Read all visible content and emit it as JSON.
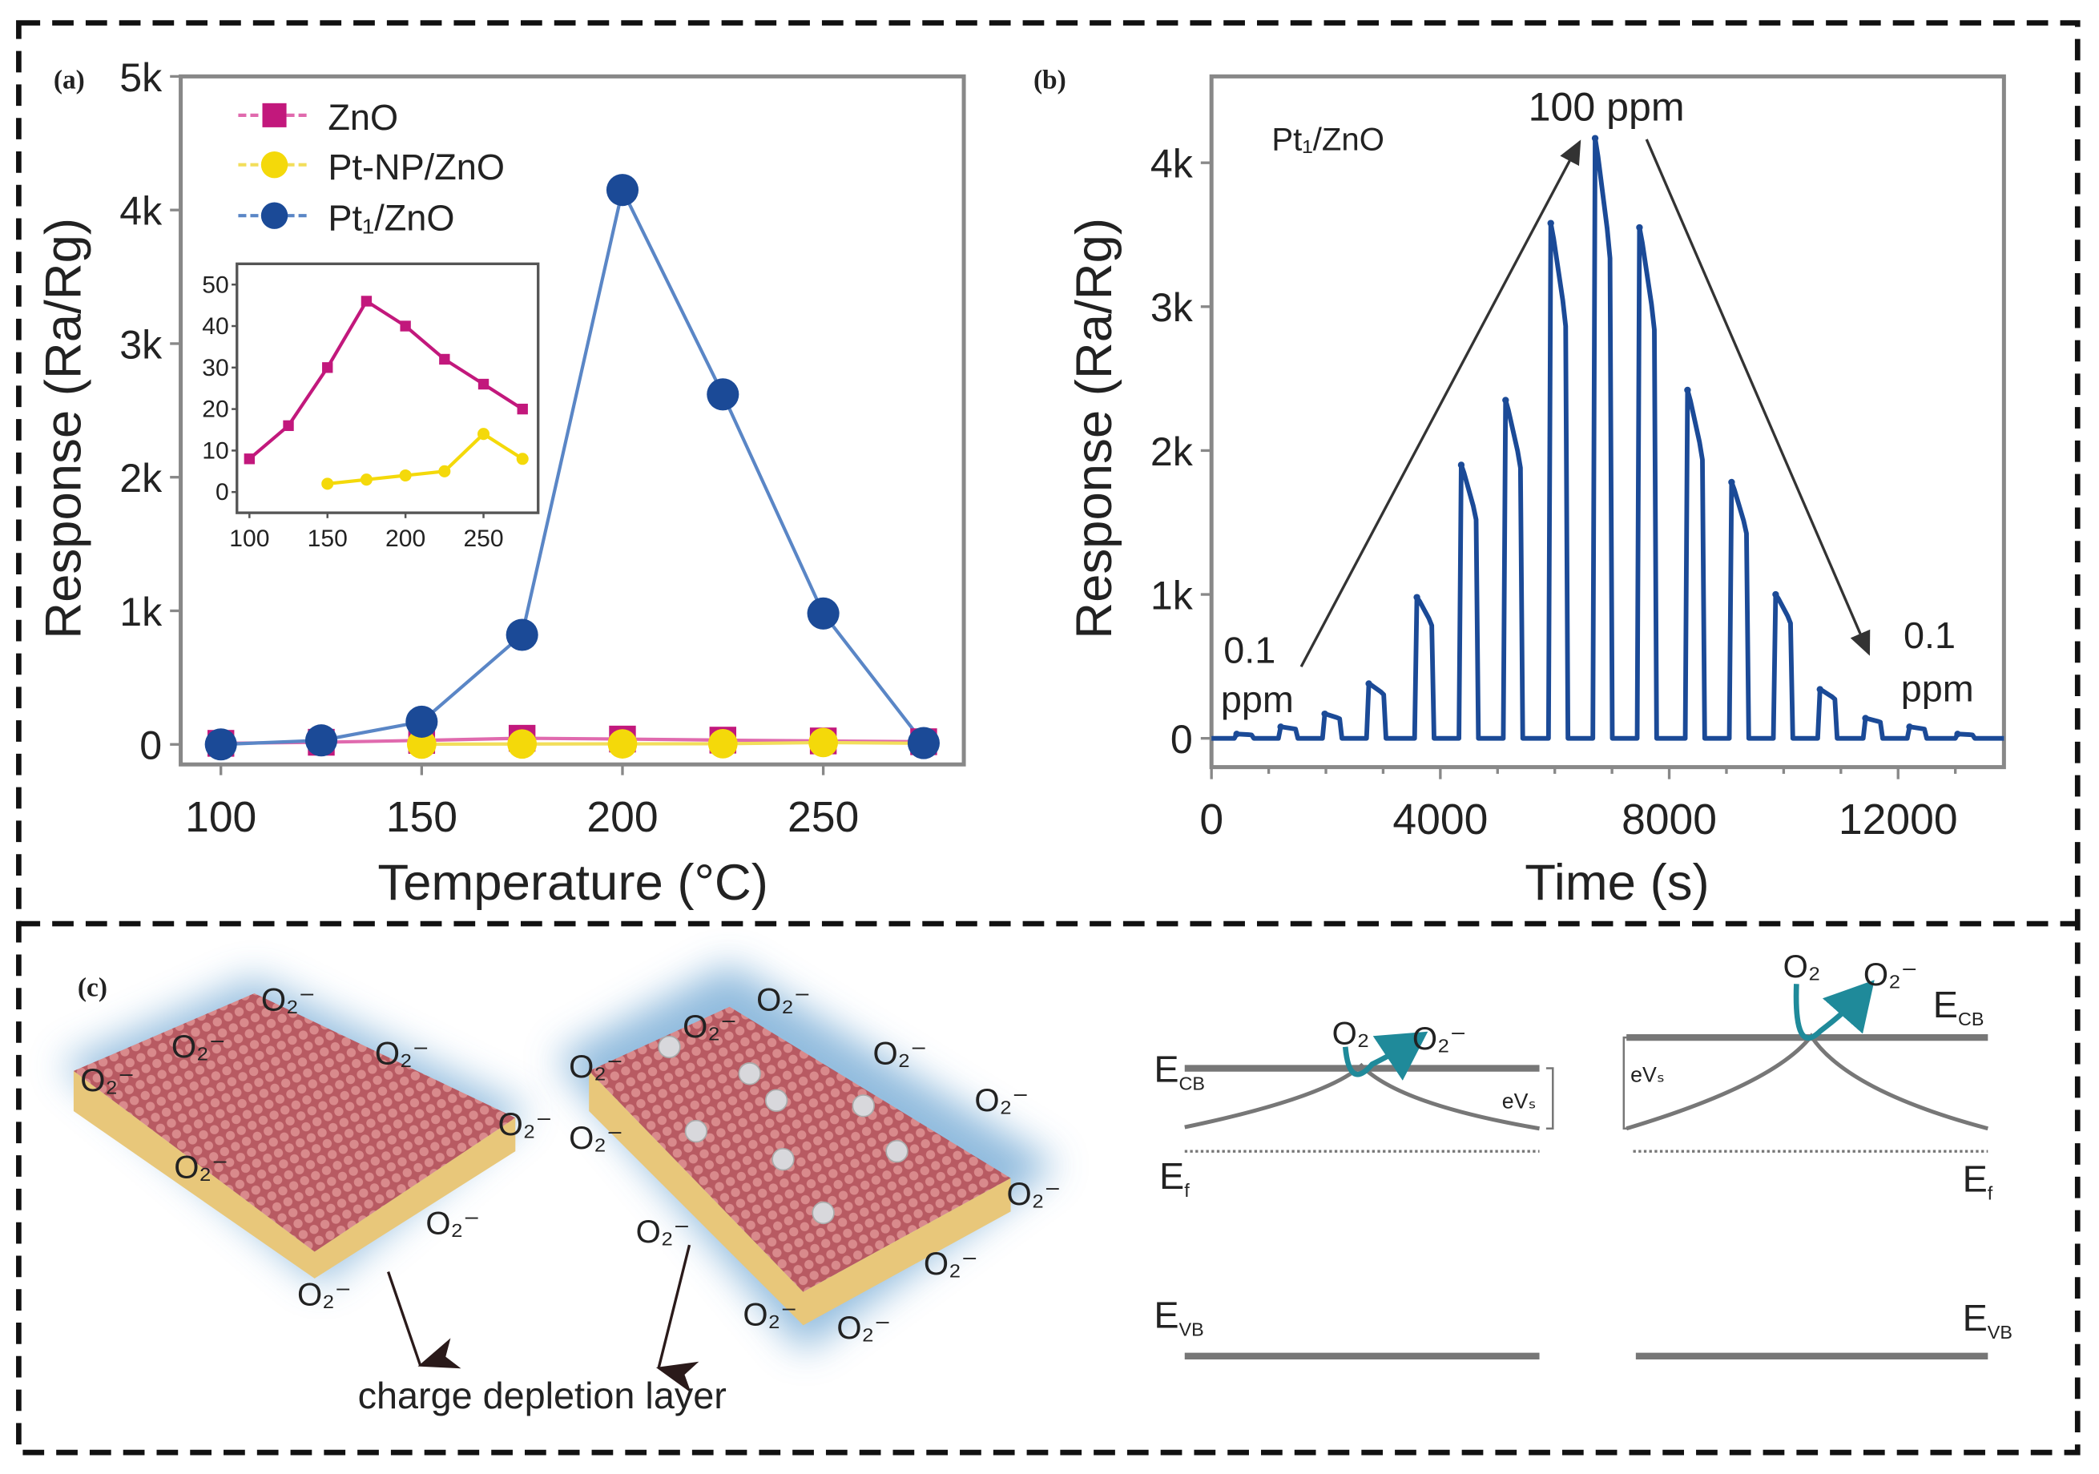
{
  "panel_labels": {
    "a": "(a)",
    "b": "(b)",
    "c": "(c)"
  },
  "colors": {
    "zno": "#c2187c",
    "zno_line": "#e06aae",
    "ptnp": "#f4d90a",
    "ptnp_line": "#f2de5a",
    "pt1": "#1b4a97",
    "pt1_line": "#5a86c6",
    "teal": "#1f8a9a",
    "glow": "#8fb8dc",
    "slab": "#c8646a"
  },
  "chart_data": [
    {
      "id": "a",
      "type": "line",
      "xlabel": "Temperature (°C)",
      "ylabel": "Response (Ra/Rg)",
      "xlim": [
        90,
        285
      ],
      "ylim": [
        -150,
        5000
      ],
      "xticks": [
        100,
        150,
        200,
        250
      ],
      "yticks": [
        {
          "v": 0,
          "label": "0"
        },
        {
          "v": 1000,
          "label": "1k"
        },
        {
          "v": 2000,
          "label": "2k"
        },
        {
          "v": 3000,
          "label": "3k"
        },
        {
          "v": 4000,
          "label": "4k"
        },
        {
          "v": 5000,
          "label": "5k"
        }
      ],
      "legend_placement": "top-left",
      "series": [
        {
          "key": "zno",
          "name": "ZnO",
          "marker": "square",
          "x": [
            100,
            125,
            150,
            175,
            200,
            225,
            250,
            275
          ],
          "y": [
            8,
            16,
            30,
            46,
            40,
            32,
            26,
            20
          ]
        },
        {
          "key": "ptnp",
          "name": "Pt-NP/ZnO",
          "marker": "circle",
          "x": [
            150,
            175,
            200,
            225,
            250,
            275
          ],
          "y": [
            2,
            3,
            4,
            5,
            14,
            8
          ]
        },
        {
          "key": "pt1",
          "name": "Pt₁/ZnO",
          "marker": "circle",
          "x": [
            100,
            125,
            150,
            175,
            200,
            225,
            250,
            275
          ],
          "y": [
            0,
            30,
            170,
            820,
            4150,
            2620,
            980,
            10
          ]
        }
      ],
      "inset": {
        "type": "line",
        "xlim": [
          92,
          285
        ],
        "ylim": [
          -5,
          55
        ],
        "xticks": [
          100,
          150,
          200,
          250
        ],
        "yticks": [
          0,
          10,
          20,
          30,
          40,
          50
        ],
        "series": [
          {
            "key": "zno",
            "x": [
              100,
              125,
              150,
              175,
              200,
              225,
              250,
              275
            ],
            "y": [
              8,
              16,
              30,
              46,
              40,
              32,
              26,
              20
            ]
          },
          {
            "key": "ptnp",
            "x": [
              150,
              175,
              200,
              225,
              250,
              275
            ],
            "y": [
              2,
              3,
              4,
              5,
              14,
              8
            ]
          }
        ]
      }
    },
    {
      "id": "b",
      "type": "line",
      "xlabel": "Time (s)",
      "ylabel": "Response (Ra/Rg)",
      "xlim": [
        0,
        13850
      ],
      "ylim": [
        -200,
        4600
      ],
      "xticks": [
        0,
        4000,
        8000,
        12000
      ],
      "yticks": [
        {
          "v": 0,
          "label": "0"
        },
        {
          "v": 1000,
          "label": "1k"
        },
        {
          "v": 2000,
          "label": "2k"
        },
        {
          "v": 3000,
          "label": "3k"
        },
        {
          "v": 4000,
          "label": "4k"
        }
      ],
      "series_label": "Pt₁/ZnO",
      "annotations": {
        "peak": "100 ppm",
        "start_value": "0.1",
        "start_unit": "ppm",
        "end_value": "0.1",
        "end_unit": "ppm"
      },
      "pulses": {
        "time_s": [
          590,
          1360,
          2130,
          2900,
          3740,
          4515,
          5290,
          6080,
          6855,
          7630,
          8470,
          9240,
          10010,
          10785,
          11580,
          12350,
          13190
        ],
        "peak_response": [
          30,
          80,
          170,
          380,
          980,
          1900,
          2350,
          3580,
          4170,
          3550,
          2420,
          1780,
          1000,
          340,
          140,
          80,
          30
        ]
      }
    }
  ],
  "diagram": {
    "o2_minus": "O₂⁻",
    "o2": "O₂",
    "caption": "charge depletion layer",
    "band": {
      "ecb": {
        "main": "E",
        "sub": "CB"
      },
      "ef": {
        "main": "E",
        "sub": "f"
      },
      "evb": {
        "main": "E",
        "sub": "VB"
      },
      "evs": "eVₛ"
    }
  }
}
